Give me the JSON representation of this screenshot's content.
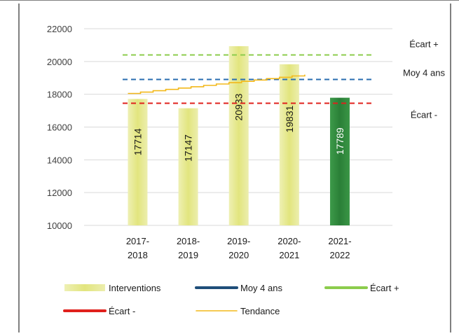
{
  "chart_data": {
    "type": "bar",
    "title": "",
    "categories": [
      [
        "2017-",
        "2018"
      ],
      [
        "2018-",
        "2019"
      ],
      [
        "2019-",
        "2020"
      ],
      [
        "2020-",
        "2021"
      ],
      [
        "2021-",
        "2022"
      ]
    ],
    "series": [
      {
        "name": "Interventions",
        "values": [
          17714,
          17147,
          20933,
          19831,
          17789
        ],
        "color": "#e4e68c",
        "highlight_color": "#2e8b3e",
        "highlight_index": 4
      }
    ],
    "reference_lines": [
      {
        "name": "Moy 4 ans",
        "value": 18906,
        "color": "#2a6db0",
        "style": "dashed",
        "label": "Moy 4 ans"
      },
      {
        "name": "Écart +",
        "value": 20400,
        "color": "#8ccc4c",
        "style": "dashed",
        "label": "Écart +"
      },
      {
        "name": "Écart -",
        "value": 17450,
        "color": "#e0201c",
        "style": "dashed",
        "label": "Écart -"
      }
    ],
    "trend": {
      "name": "Tendance",
      "start": 18050,
      "end": 19200,
      "color": "#f2b81a"
    },
    "ylim": [
      10000,
      22000
    ],
    "yticks": [
      10000,
      12000,
      14000,
      16000,
      18000,
      20000,
      22000
    ],
    "grid": true,
    "legend": {
      "position": "bottom",
      "items": [
        {
          "label": "Interventions",
          "kind": "bar",
          "color": "#e4e68c"
        },
        {
          "label": "Moy 4 ans",
          "kind": "thick-line",
          "color": "#1f4e79"
        },
        {
          "label": "Écart +",
          "kind": "thick-line",
          "color": "#8ccc4c"
        },
        {
          "label": "Écart -",
          "kind": "thick-line",
          "color": "#e0201c"
        },
        {
          "label": "Tendance",
          "kind": "thin-line",
          "color": "#f2b81a"
        }
      ]
    }
  }
}
